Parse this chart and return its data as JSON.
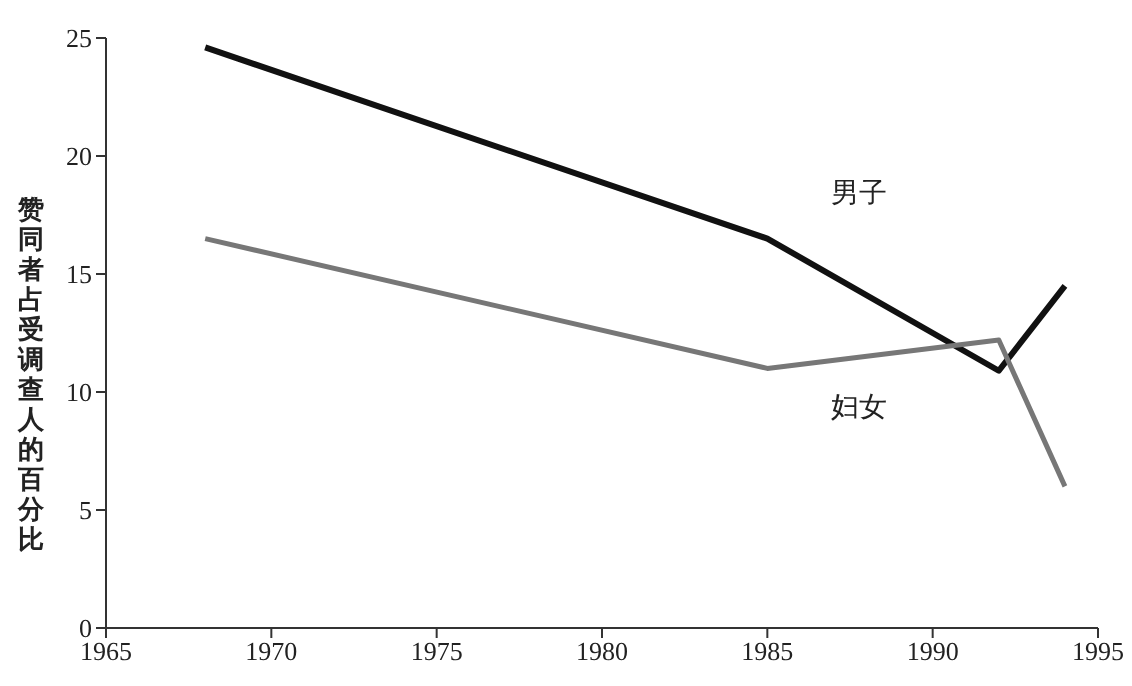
{
  "chart_data": {
    "type": "line",
    "ylabel": "赞同者占受调查人的百分比",
    "x": [
      1968,
      1985,
      1992,
      1994
    ],
    "series": [
      {
        "name": "男子",
        "color": "#111111",
        "values": [
          24.6,
          16.5,
          10.9,
          14.5
        ]
      },
      {
        "name": "妇女",
        "color": "#777777",
        "values": [
          16.5,
          11.0,
          12.2,
          6.0
        ]
      }
    ],
    "xlim": [
      1965,
      1995
    ],
    "xticks": [
      1965,
      1970,
      1975,
      1980,
      1985,
      1990,
      1995
    ],
    "ylim": [
      0,
      25
    ],
    "yticks": [
      0,
      5,
      10,
      15,
      20,
      25
    ],
    "grid": false,
    "legend": false,
    "marker": "none",
    "line_style": "solid"
  }
}
